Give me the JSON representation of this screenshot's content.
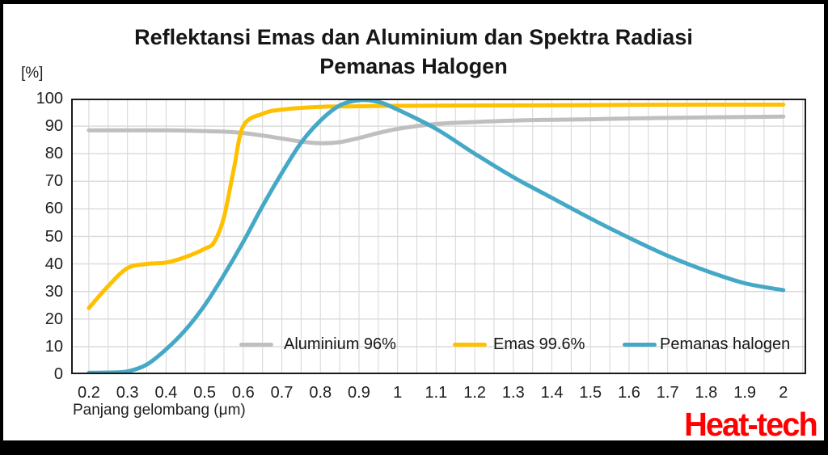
{
  "chart_data": {
    "type": "line",
    "title_lines": [
      "Reflektansi Emas dan Aluminium dan Spektra Radiasi",
      "Pemanas Halogen"
    ],
    "y_unit_label": "[%]",
    "xlabel": "Panjang gelombang (μm)",
    "xlim": [
      0.154,
      2.059
    ],
    "ylim": [
      0,
      100
    ],
    "grid": {
      "on": true,
      "x_start": 0.2,
      "x_end": 2.05,
      "x_step": 0.05,
      "y_step": 10,
      "color": "#d9d9d9"
    },
    "plot_border_color": "#1a1a1a",
    "x_ticks": {
      "values": [
        0.2,
        0.3,
        0.4,
        0.5,
        0.6,
        0.7,
        0.8,
        0.9,
        1,
        1.1,
        1.2,
        1.3,
        1.4,
        1.5,
        1.6,
        1.7,
        1.8,
        1.9,
        2
      ],
      "labels": [
        "0.2",
        "0.3",
        "0.4",
        "0.5",
        "0.6",
        "0.7",
        "0.8",
        "0.9",
        "1",
        "1.1",
        "1.2",
        "1.3",
        "1.4",
        "1.5",
        "1.6",
        "1.7",
        "1.8",
        "1.9",
        "2"
      ]
    },
    "y_ticks": {
      "values": [
        0,
        10,
        20,
        30,
        40,
        50,
        60,
        70,
        80,
        90,
        100
      ],
      "labels": [
        "0",
        "10",
        "20",
        "30",
        "40",
        "50",
        "60",
        "70",
        "80",
        "90",
        "100"
      ]
    },
    "legend": {
      "position": "inside-bottom",
      "entries": [
        {
          "label": "Aluminium 96%",
          "color": "#bfbfbf"
        },
        {
          "label": "Emas 99.6%",
          "color": "#ffc000"
        },
        {
          "label": "Pemanas halogen",
          "color": "#44a8c6"
        }
      ]
    },
    "series": [
      {
        "name": "Aluminium 96%",
        "color": "#bfbfbf",
        "x": [
          0.2,
          0.25,
          0.3,
          0.35,
          0.4,
          0.45,
          0.5,
          0.55,
          0.6,
          0.65,
          0.7,
          0.75,
          0.8,
          0.85,
          0.9,
          0.95,
          1.0,
          1.1,
          1.2,
          1.3,
          1.4,
          1.5,
          1.6,
          1.7,
          1.8,
          1.9,
          2.0
        ],
        "y": [
          88.5,
          88.5,
          88.5,
          88.5,
          88.5,
          88.4,
          88.2,
          88.0,
          87.5,
          86.6,
          85.5,
          84.4,
          83.8,
          84.2,
          85.7,
          87.5,
          89.0,
          90.8,
          91.5,
          92.0,
          92.3,
          92.5,
          92.8,
          93.0,
          93.2,
          93.3,
          93.5
        ]
      },
      {
        "name": "Emas 99.6%",
        "color": "#ffc000",
        "x": [
          0.2,
          0.25,
          0.3,
          0.35,
          0.4,
          0.45,
          0.5,
          0.525,
          0.55,
          0.575,
          0.6,
          0.65,
          0.7,
          0.8,
          0.9,
          1.0,
          1.2,
          1.4,
          1.6,
          1.8,
          2.0
        ],
        "y": [
          24,
          32,
          38.5,
          40,
          40.5,
          42.5,
          45.5,
          48,
          57,
          74,
          90,
          94.5,
          96,
          97,
          97.2,
          97.4,
          97.5,
          97.6,
          97.7,
          97.8,
          97.8
        ]
      },
      {
        "name": "Pemanas halogen",
        "color": "#44a8c6",
        "x": [
          0.2,
          0.25,
          0.3,
          0.35,
          0.4,
          0.45,
          0.5,
          0.55,
          0.6,
          0.65,
          0.7,
          0.75,
          0.8,
          0.85,
          0.9,
          0.95,
          1.0,
          1.1,
          1.2,
          1.3,
          1.4,
          1.5,
          1.6,
          1.7,
          1.8,
          1.9,
          2.0
        ],
        "y": [
          0.5,
          0.6,
          1,
          3.5,
          9,
          16,
          25,
          36,
          48,
          61,
          73,
          84,
          92,
          97.5,
          99.4,
          98.8,
          96,
          89,
          80,
          71.5,
          64,
          56.5,
          49.5,
          43,
          37.5,
          33,
          30.5
        ]
      }
    ]
  },
  "branding": {
    "logo_text": "Heat-tech",
    "logo_color": "#ff0000"
  }
}
